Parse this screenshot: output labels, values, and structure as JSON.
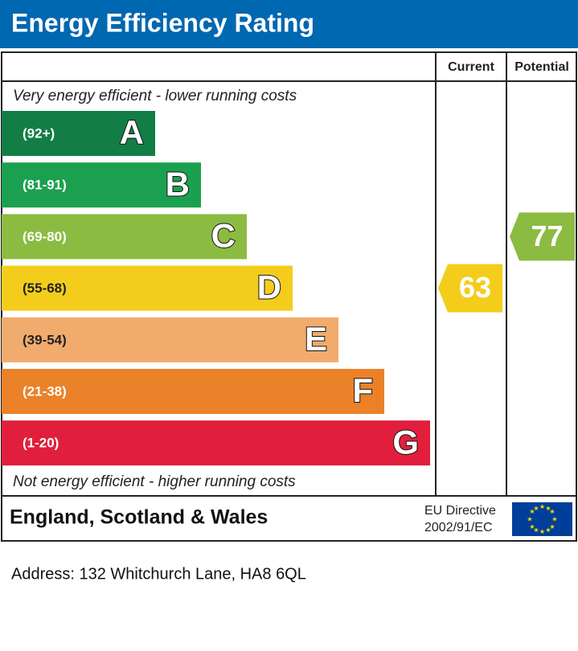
{
  "title": "Energy Efficiency Rating",
  "columns": {
    "current": "Current",
    "potential": "Potential"
  },
  "top_note": "Very energy efficient - lower running costs",
  "bottom_note": "Not energy efficient - higher running costs",
  "bands": [
    {
      "range": "(92+)",
      "letter": "A",
      "color": "#127e45"
    },
    {
      "range": "(81-91)",
      "letter": "B",
      "color": "#1ba04f"
    },
    {
      "range": "(69-80)",
      "letter": "C",
      "color": "#8cbb42"
    },
    {
      "range": "(55-68)",
      "letter": "D",
      "color": "#f4cd1c"
    },
    {
      "range": "(39-54)",
      "letter": "E",
      "color": "#f1ab6d"
    },
    {
      "range": "(21-38)",
      "letter": "F",
      "color": "#eb8128"
    },
    {
      "range": "(1-20)",
      "letter": "G",
      "color": "#e11f3c"
    }
  ],
  "ratings": {
    "current": {
      "value": 63,
      "color": "#f4cd1c"
    },
    "potential": {
      "value": 77,
      "color": "#8cbb42"
    }
  },
  "footer": {
    "region": "England, Scotland & Wales",
    "directive_line1": "EU Directive",
    "directive_line2": "2002/91/EC"
  },
  "address": "Address: 132 Whitchurch Lane, HA8 6QL"
}
